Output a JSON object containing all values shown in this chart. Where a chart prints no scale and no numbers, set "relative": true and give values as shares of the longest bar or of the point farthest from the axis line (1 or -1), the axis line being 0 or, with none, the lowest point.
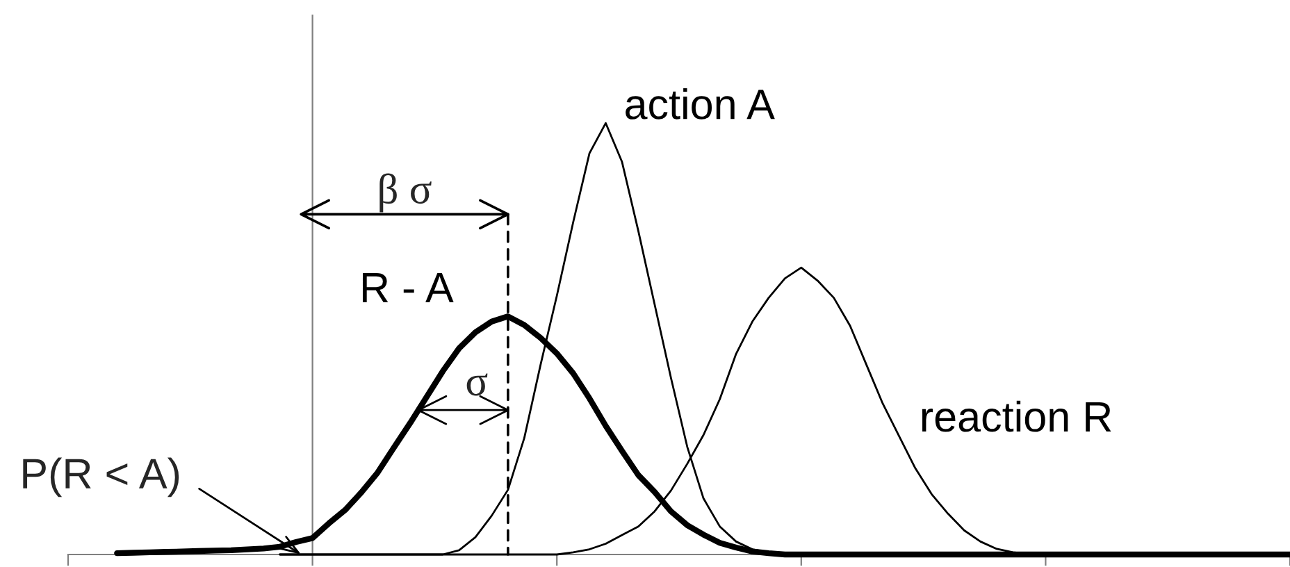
{
  "chart_data": {
    "type": "line",
    "relative": true,
    "categories": [
      null,
      null,
      null,
      null,
      null,
      null,
      null,
      null,
      null,
      null,
      null,
      null,
      null,
      null,
      null,
      null,
      null,
      null,
      null,
      null,
      null,
      null,
      null,
      null,
      null,
      null,
      null,
      null,
      null,
      null,
      null,
      null,
      null,
      null,
      null,
      null,
      null,
      null,
      null,
      null,
      null,
      null,
      null,
      null,
      null,
      null,
      null,
      null,
      null,
      null,
      null,
      null,
      null,
      null,
      null,
      null,
      null,
      null,
      null,
      null,
      null,
      null,
      null,
      null,
      null,
      null,
      null,
      null,
      null,
      null,
      null,
      null,
      null,
      null,
      null,
      null
    ],
    "series": [
      {
        "name": "R - A",
        "color": "#000000",
        "values": [
          null,
          null,
          null,
          0.003,
          0.004,
          0.005,
          0.006,
          0.007,
          0.008,
          0.009,
          0.01,
          0.012,
          0.014,
          0.018,
          0.029,
          0.038,
          0.072,
          0.103,
          0.144,
          0.19,
          0.248,
          0.305,
          0.365,
          0.425,
          0.478,
          0.515,
          0.54,
          0.552,
          0.532,
          0.502,
          0.466,
          0.42,
          0.362,
          0.298,
          0.24,
          0.184,
          0.145,
          0.1,
          0.068,
          0.046,
          0.027,
          0.016,
          0.007,
          0.003,
          0,
          0,
          0,
          0,
          0,
          0,
          0,
          0,
          0,
          0,
          0,
          0,
          0,
          0,
          0,
          0,
          0,
          0,
          0,
          0,
          0,
          0,
          0,
          0,
          0,
          0,
          0,
          0,
          0,
          0,
          0,
          0
        ]
      },
      {
        "name": "action A",
        "color": "#000000",
        "values": [
          null,
          null,
          null,
          null,
          null,
          null,
          null,
          null,
          null,
          null,
          null,
          null,
          null,
          0,
          0,
          0,
          0,
          0,
          0,
          0,
          0,
          0,
          0,
          0,
          0.01,
          0.04,
          0.09,
          0.15,
          0.27,
          0.44,
          0.6,
          0.77,
          0.93,
          1,
          0.91,
          0.75,
          0.58,
          0.41,
          0.25,
          0.13,
          0.065,
          0.03,
          0.012,
          0.005,
          0,
          null,
          null,
          null,
          null,
          null,
          null,
          null,
          null,
          null,
          null,
          null,
          null,
          null,
          null,
          null,
          null,
          null,
          null,
          null,
          null,
          null,
          null,
          null,
          null,
          null,
          null,
          null,
          null,
          null,
          null,
          null
        ]
      },
      {
        "name": "reaction R",
        "color": "#000000",
        "values": [
          null,
          null,
          null,
          null,
          null,
          null,
          null,
          null,
          null,
          null,
          null,
          null,
          null,
          0,
          0,
          0,
          0,
          0,
          0,
          0,
          0,
          0,
          0,
          0,
          0,
          0,
          0,
          0,
          0,
          0,
          0,
          0.005,
          0.012,
          0.025,
          0.045,
          0.065,
          0.1,
          0.148,
          0.21,
          0.277,
          0.36,
          0.465,
          0.54,
          0.595,
          0.64,
          0.665,
          0.635,
          0.595,
          0.53,
          0.44,
          0.35,
          0.275,
          0.2,
          0.14,
          0.095,
          0.056,
          0.03,
          0.013,
          0.005,
          0.001,
          0,
          null,
          null,
          null,
          null,
          null,
          null,
          null,
          null,
          null,
          null,
          null,
          null,
          null,
          null,
          null
        ]
      }
    ],
    "annotations": [
      "β σ",
      "σ",
      "P(R < A)"
    ]
  }
}
